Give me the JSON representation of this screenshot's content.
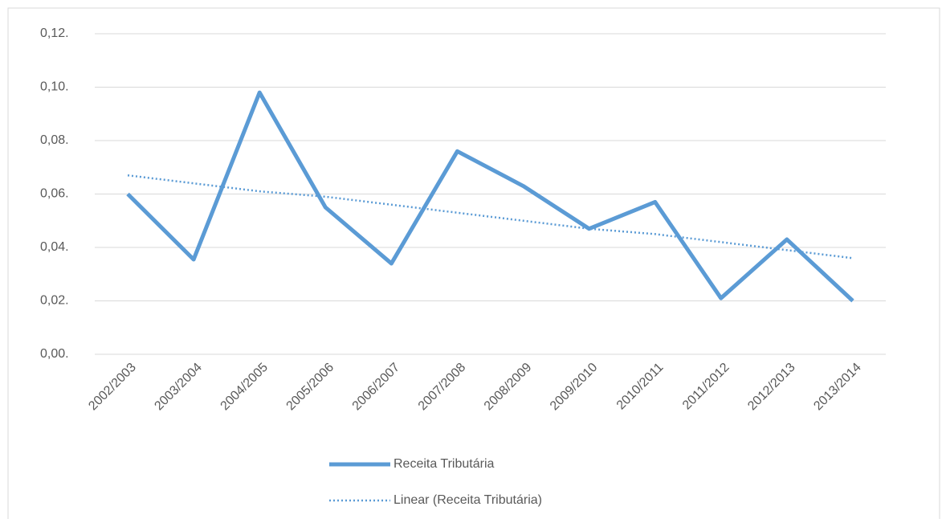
{
  "chart_data": {
    "type": "line",
    "categories": [
      "2002/2003",
      "2003/2004",
      "2004/2005",
      "2005/2006",
      "2006/2007",
      "2007/2008",
      "2008/2009",
      "2009/2010",
      "2010/2011",
      "2011/2012",
      "2012/2013",
      "2013/2014"
    ],
    "series": [
      {
        "name": "Receita Tributária",
        "color": "#5b9bd5",
        "style": "solid",
        "values": [
          0.06,
          0.0355,
          0.098,
          0.055,
          0.034,
          0.076,
          0.063,
          0.047,
          0.057,
          0.021,
          0.043,
          0.02
        ]
      },
      {
        "name": "Linear (Receita Tributária)",
        "color": "#5b9bd5",
        "style": "dotted",
        "values": [
          0.067,
          0.064,
          0.061,
          0.059,
          0.056,
          0.053,
          0.05,
          0.047,
          0.045,
          0.042,
          0.039,
          0.036
        ]
      }
    ],
    "ylim": [
      0,
      0.12
    ],
    "yticks": [
      {
        "value": 0,
        "label": "0,00."
      },
      {
        "value": 0.02,
        "label": "0,02."
      },
      {
        "value": 0.04,
        "label": "0,04."
      },
      {
        "value": 0.06,
        "label": "0,06."
      },
      {
        "value": 0.08,
        "label": "0,08."
      },
      {
        "value": 0.1,
        "label": "0,10."
      },
      {
        "value": 0.12,
        "label": "0,12."
      }
    ],
    "grid": true,
    "legend": "bottom"
  }
}
